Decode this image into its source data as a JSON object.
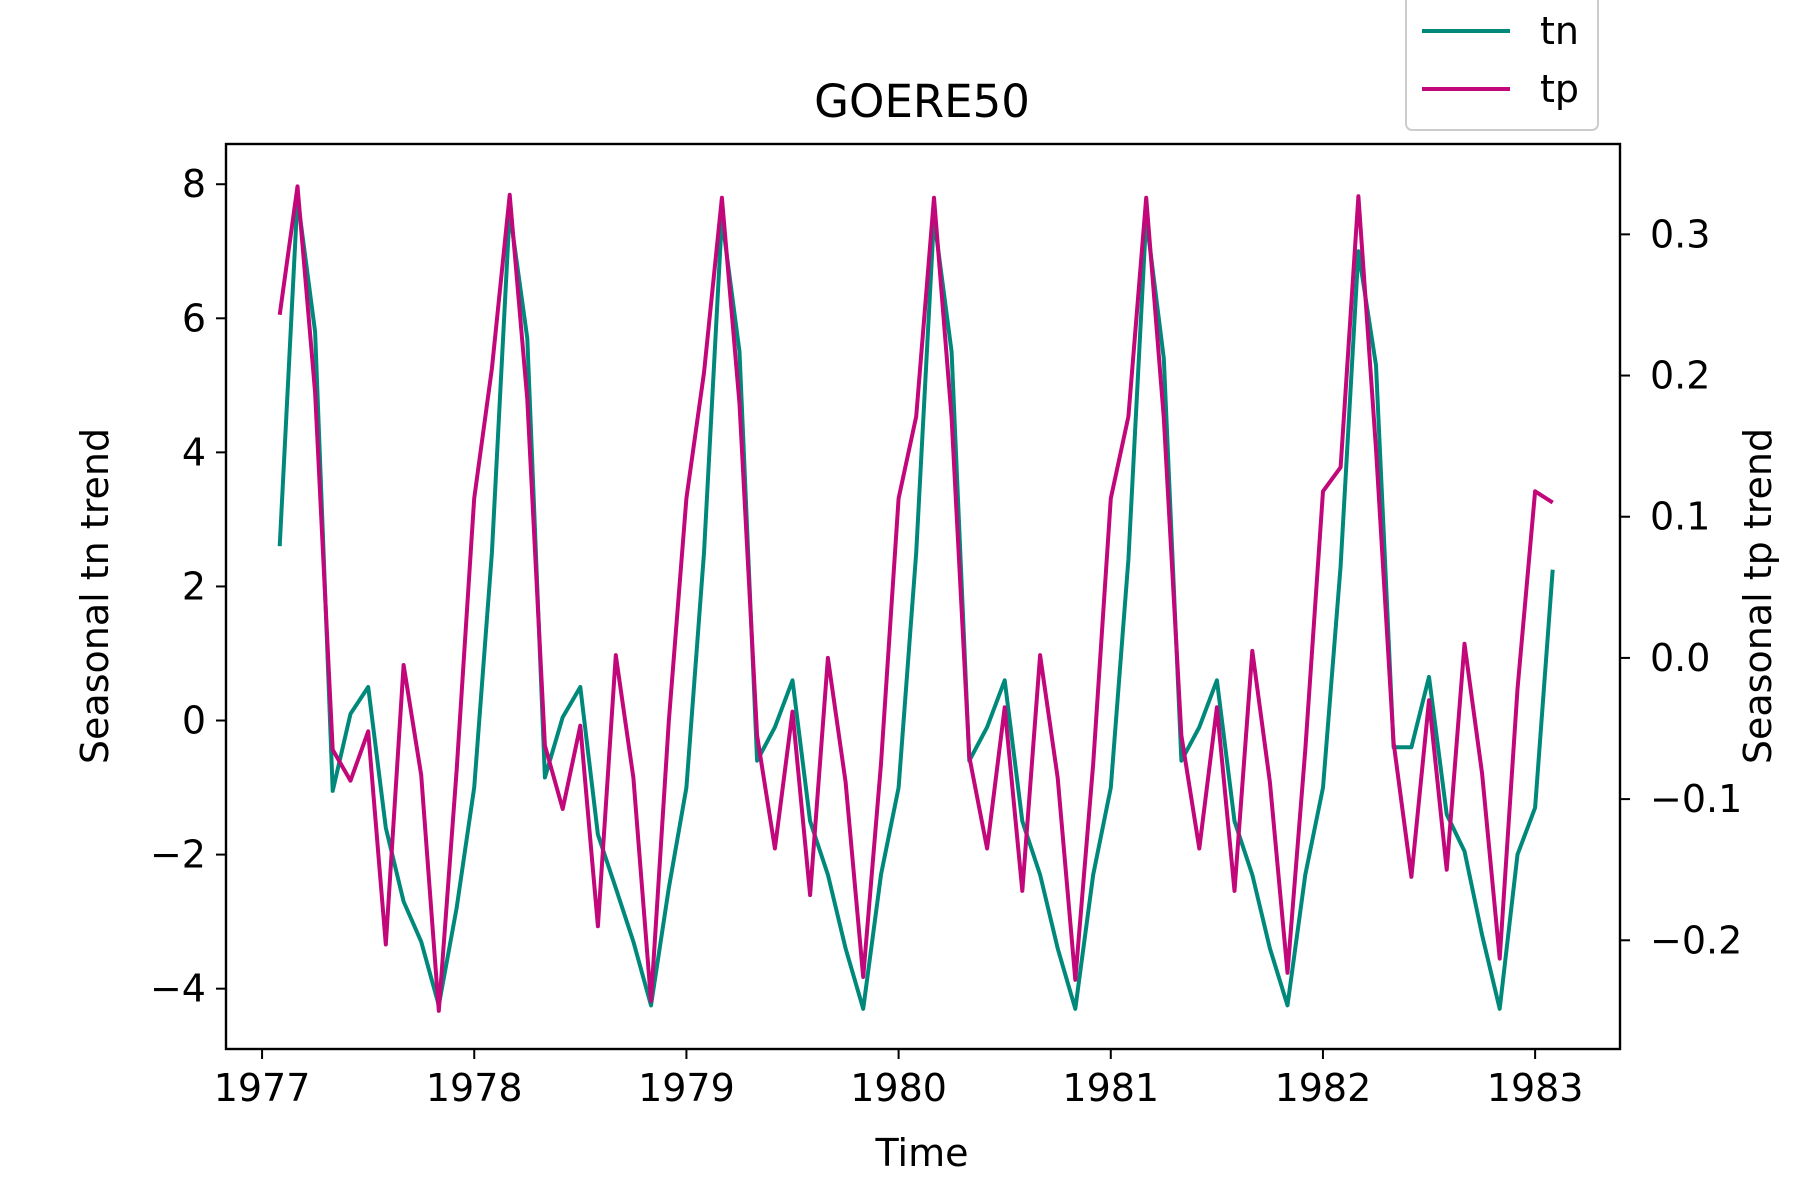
{
  "chart_data": {
    "type": "line",
    "title": "GOERE50",
    "xlabel": "Time",
    "ylabel_left": "Seasonal tn trend",
    "ylabel_right": "Seasonal tp trend",
    "xlim": [
      1976.83,
      1983.4
    ],
    "ylim_left": [
      -4.9,
      8.6
    ],
    "ylim_right": [
      -0.277,
      0.364
    ],
    "x_ticks": [
      1977,
      1978,
      1979,
      1980,
      1981,
      1982,
      1983
    ],
    "y_ticks_left": [
      -4,
      -2,
      0,
      2,
      4,
      6,
      8
    ],
    "y_ticks_right": [
      -0.2,
      -0.1,
      0.0,
      0.1,
      0.2,
      0.3
    ],
    "x_tick_labels": [
      "1977",
      "1978",
      "1979",
      "1980",
      "1981",
      "1982",
      "1983"
    ],
    "y_tick_labels_left": [
      "−4",
      "−2",
      "0",
      "2",
      "4",
      "6",
      "8"
    ],
    "y_tick_labels_right": [
      "−0.2",
      "−0.1",
      "0.0",
      "0.1",
      "0.2",
      "0.3"
    ],
    "grid": false,
    "legend_position": "top-right, above plot",
    "series": [
      {
        "name": "tn",
        "axis": "left",
        "color": "#00897B",
        "x": [
          1977.083,
          1977.167,
          1977.25,
          1977.333,
          1977.417,
          1977.5,
          1977.583,
          1977.667,
          1977.75,
          1977.833,
          1977.917,
          1978.0,
          1978.083,
          1978.167,
          1978.25,
          1978.333,
          1978.417,
          1978.5,
          1978.583,
          1978.667,
          1978.75,
          1978.833,
          1978.917,
          1979.0,
          1979.083,
          1979.167,
          1979.25,
          1979.333,
          1979.417,
          1979.5,
          1979.583,
          1979.667,
          1979.75,
          1979.833,
          1979.917,
          1980.0,
          1980.083,
          1980.167,
          1980.25,
          1980.333,
          1980.417,
          1980.5,
          1980.583,
          1980.667,
          1980.75,
          1980.833,
          1980.917,
          1981.0,
          1981.083,
          1981.167,
          1981.25,
          1981.333,
          1981.417,
          1981.5,
          1981.583,
          1981.667,
          1981.75,
          1981.833,
          1981.917,
          1982.0,
          1982.083,
          1982.167,
          1982.25,
          1982.333,
          1982.417,
          1982.5,
          1982.583,
          1982.667,
          1982.75,
          1982.833,
          1982.917,
          1983.0,
          1983.083
        ],
        "values": [
          2.6,
          7.8,
          5.8,
          -1.05,
          0.1,
          0.5,
          -1.6,
          -2.7,
          -3.3,
          -4.25,
          -2.8,
          -1.0,
          2.5,
          7.6,
          5.7,
          -0.85,
          0.05,
          0.5,
          -1.7,
          -2.5,
          -3.3,
          -4.25,
          -2.5,
          -1.0,
          2.5,
          7.5,
          5.5,
          -0.6,
          -0.1,
          0.6,
          -1.5,
          -2.3,
          -3.4,
          -4.3,
          -2.3,
          -1.0,
          2.5,
          7.5,
          5.5,
          -0.6,
          -0.1,
          0.6,
          -1.5,
          -2.3,
          -3.4,
          -4.3,
          -2.3,
          -1.0,
          2.4,
          7.5,
          5.4,
          -0.6,
          -0.1,
          0.6,
          -1.5,
          -2.3,
          -3.4,
          -4.25,
          -2.3,
          -1.0,
          2.3,
          7.0,
          5.3,
          -0.4,
          -0.4,
          0.65,
          -1.4,
          -1.95,
          -3.2,
          -4.3,
          -2.0,
          -1.3,
          2.25
        ]
      },
      {
        "name": "tp",
        "axis": "right",
        "color": "#C2077A",
        "x": [
          1977.083,
          1977.167,
          1977.25,
          1977.333,
          1977.417,
          1977.5,
          1977.583,
          1977.667,
          1977.75,
          1977.833,
          1977.917,
          1978.0,
          1978.083,
          1978.167,
          1978.25,
          1978.333,
          1978.417,
          1978.5,
          1978.583,
          1978.667,
          1978.75,
          1978.833,
          1978.917,
          1979.0,
          1979.083,
          1979.167,
          1979.25,
          1979.333,
          1979.417,
          1979.5,
          1979.583,
          1979.667,
          1979.75,
          1979.833,
          1979.917,
          1980.0,
          1980.083,
          1980.167,
          1980.25,
          1980.333,
          1980.417,
          1980.5,
          1980.583,
          1980.667,
          1980.75,
          1980.833,
          1980.917,
          1981.0,
          1981.083,
          1981.167,
          1981.25,
          1981.333,
          1981.417,
          1981.5,
          1981.583,
          1981.667,
          1981.75,
          1981.833,
          1981.917,
          1982.0,
          1982.083,
          1982.167,
          1982.25,
          1982.333,
          1982.417,
          1982.5,
          1982.583,
          1982.667,
          1982.75,
          1982.833,
          1982.917,
          1983.0,
          1983.083
        ],
        "values": [
          0.243,
          0.334,
          0.188,
          -0.065,
          -0.087,
          -0.052,
          -0.203,
          -0.005,
          -0.083,
          -0.25,
          -0.08,
          0.113,
          0.205,
          0.328,
          0.183,
          -0.062,
          -0.107,
          -0.048,
          -0.19,
          0.002,
          -0.085,
          -0.243,
          -0.045,
          0.113,
          0.202,
          0.326,
          0.18,
          -0.055,
          -0.135,
          -0.038,
          -0.168,
          0.0,
          -0.088,
          -0.226,
          -0.075,
          0.113,
          0.171,
          0.326,
          0.17,
          -0.07,
          -0.135,
          -0.035,
          -0.165,
          0.002,
          -0.085,
          -0.228,
          -0.075,
          0.113,
          0.171,
          0.326,
          0.17,
          -0.055,
          -0.135,
          -0.035,
          -0.165,
          0.005,
          -0.088,
          -0.223,
          -0.065,
          0.118,
          0.135,
          0.327,
          0.148,
          -0.06,
          -0.155,
          -0.03,
          -0.15,
          0.01,
          -0.082,
          -0.213,
          -0.022,
          0.118,
          0.11
        ]
      }
    ]
  }
}
